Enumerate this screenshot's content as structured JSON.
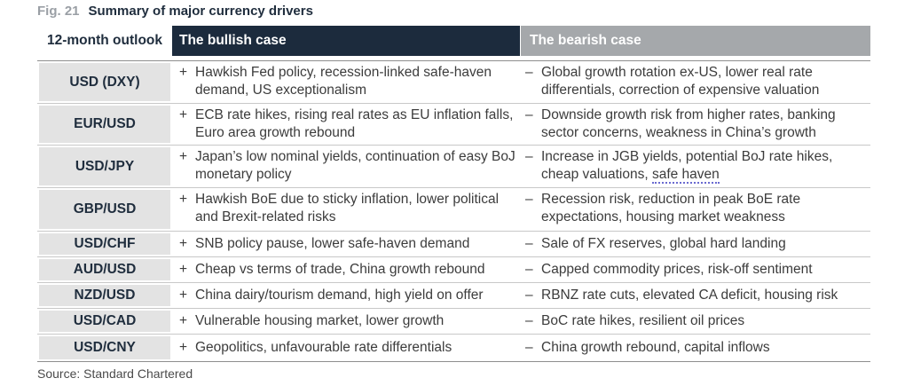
{
  "figure": {
    "number": "Fig. 21",
    "title": "Summary of major currency drivers"
  },
  "header": {
    "outlook": "12-month outlook",
    "bullish": "The bullish case",
    "bearish": "The bearish case"
  },
  "rows": [
    {
      "pair": "USD (DXY)",
      "bull": "Hawkish Fed policy, recession-linked safe-haven demand, US exceptionalism",
      "bear": "Global growth rotation ex-US, lower real rate differentials, correction of expensive valuation"
    },
    {
      "pair": "EUR/USD",
      "bull": "ECB rate hikes, rising real rates as EU inflation falls, Euro area growth rebound",
      "bear": "Downside growth risk from higher rates, banking sector concerns, weakness in China’s growth"
    },
    {
      "pair": "USD/JPY",
      "bull": "Japan’s low nominal yields, continuation of easy BoJ monetary policy",
      "bear": "Increase in JGB yields, potential BoJ rate hikes, cheap valuations, ",
      "bear_tail": "safe haven"
    },
    {
      "pair": "GBP/USD",
      "bull": "Hawkish BoE due to sticky inflation, lower political and Brexit-related risks",
      "bear": "Recession risk, reduction in peak BoE rate expectations, housing market weakness"
    },
    {
      "pair": "USD/CHF",
      "bull": "SNB policy pause, lower safe-haven demand",
      "bear": "Sale of FX reserves, global hard landing"
    },
    {
      "pair": "AUD/USD",
      "bull": "Cheap vs terms of trade, China growth rebound",
      "bear": "Capped commodity prices, risk-off sentiment"
    },
    {
      "pair": "NZD/USD",
      "bull": "China dairy/tourism demand, high yield on offer",
      "bear": "RBNZ rate cuts, elevated CA deficit, housing risk"
    },
    {
      "pair": "USD/CAD",
      "bull": "Vulnerable housing market, lower growth",
      "bear": "BoC rate hikes, resilient oil prices"
    },
    {
      "pair": "USD/CNY",
      "bull": "Geopolitics, unfavourable rate differentials",
      "bear": "China growth rebound, capital inflows"
    }
  ],
  "signs": {
    "plus": "+",
    "minus": "–"
  },
  "source": "Source: Standard Chartered"
}
